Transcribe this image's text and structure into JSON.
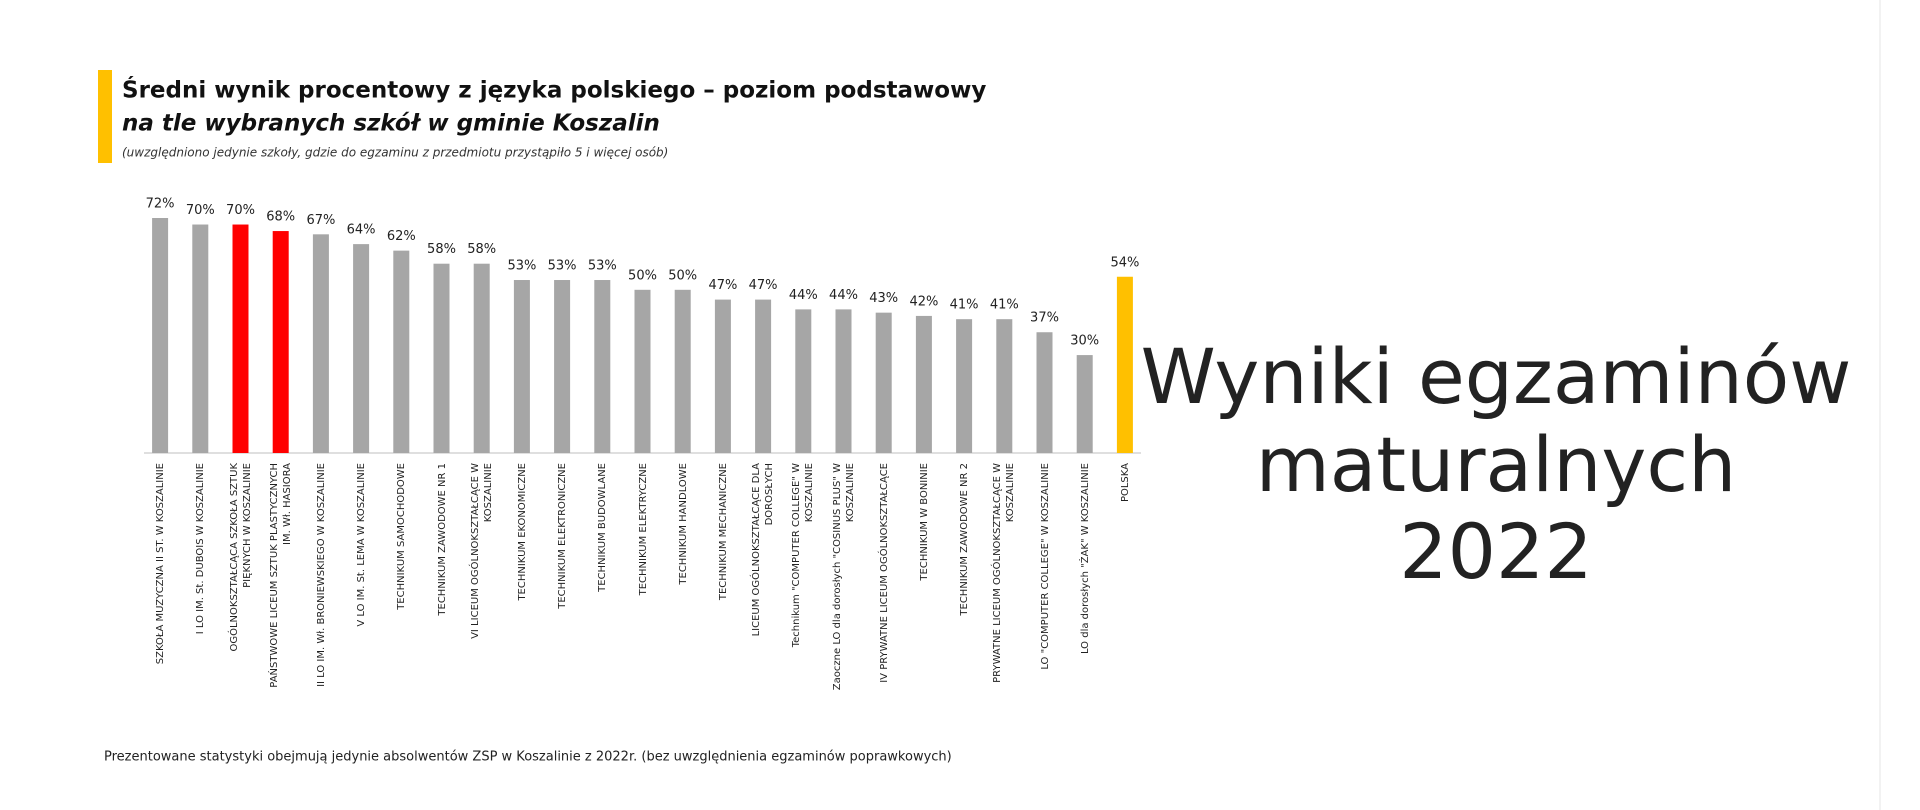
{
  "header": {
    "title": "Średni wynik procentowy z języka polskiego – poziom podstawowy",
    "subtitle": "na tle wybranych szkół w gminie Koszalin",
    "note": "(uwzględniono jedynie szkoły, gdzie do egzaminu z przedmiotu przystąpiło 5 i więcej osób)"
  },
  "chart_data": {
    "type": "bar",
    "categories": [
      "SZKOŁA MUZYCZNA II ST. W KOSZALINIE",
      "I LO IM. St. DUBOIS W KOSZALINIE",
      "OGÓLNOKSZTAŁCĄCA SZKOŁA SZTUK PIĘKNYCH W KOSZALINIE",
      "PAŃSTWOWE LICEUM SZTUK PLASTYCZNYCH IM. Wł. HASIORA",
      "II LO IM. Wł. BRONIEWSKIEGO W KOSZALINIE",
      "V LO IM. St. LEMA W KOSZALINIE",
      "TECHNIKUM SAMOCHODOWE",
      "TECHNIKUM ZAWODOWE NR 1",
      "VI LICEUM OGÓLNOKSZTAŁCĄCE W KOSZALINIE",
      "TECHNIKUM EKONOMICZNE",
      "TECHNIKUM ELEKTRONICZNE",
      "TECHNIKUM BUDOWLANE",
      "TECHNIKUM ELEKTRYCZNE",
      "TECHNIKUM HANDLOWE",
      "TECHNIKUM MECHANICZNE",
      "LICEUM OGÓLNOKSZTAŁCĄCE DLA DOROSŁYCH",
      "Technikum \"COMPUTER COLLEGE\" W KOSZALINIE",
      "Zaoczne LO dla dorosłych \"COSINUS PLUS\" W KOSZALINIE",
      "IV PRYWATNE LICEUM OGÓLNOKSZTAŁCĄCE",
      "TECHNIKUM W BONINIE",
      "TECHNIKUM ZAWODOWE NR 2",
      "PRYWATNE LICEUM OGÓLNOKSZTAŁCĄCE W KOSZALINIE",
      "LO \"COMPUTER COLLEGE\" W KOSZALINIE",
      "LO dla dorosłych \"ŻAK\" W KOSZALINIE",
      "POLSKA"
    ],
    "values": [
      72,
      70,
      70,
      68,
      67,
      64,
      62,
      58,
      58,
      53,
      53,
      53,
      50,
      50,
      47,
      47,
      44,
      44,
      43,
      42,
      41,
      41,
      37,
      30,
      54
    ],
    "value_labels": [
      "72%",
      "70%",
      "70%",
      "68%",
      "67%",
      "64%",
      "62%",
      "58%",
      "58%",
      "53%",
      "53%",
      "53%",
      "50%",
      "50%",
      "47%",
      "47%",
      "44%",
      "44%",
      "43%",
      "42%",
      "41%",
      "41%",
      "37%",
      "30%",
      "54%"
    ],
    "colors": [
      "#a6a6a6",
      "#a6a6a6",
      "#ff0000",
      "#ff0000",
      "#a6a6a6",
      "#a6a6a6",
      "#a6a6a6",
      "#a6a6a6",
      "#a6a6a6",
      "#a6a6a6",
      "#a6a6a6",
      "#a6a6a6",
      "#a6a6a6",
      "#a6a6a6",
      "#a6a6a6",
      "#a6a6a6",
      "#a6a6a6",
      "#a6a6a6",
      "#a6a6a6",
      "#a6a6a6",
      "#a6a6a6",
      "#a6a6a6",
      "#a6a6a6",
      "#a6a6a6",
      "#ffc000"
    ]
  },
  "footer": "Prezentowane statystyki obejmują jedynie absolwentów ZSP w Koszalinie z 2022r. (bez uwzględnienia egzaminów poprawkowych)",
  "side_title": [
    "Wyniki egzaminów",
    "maturalnych",
    "2022"
  ]
}
